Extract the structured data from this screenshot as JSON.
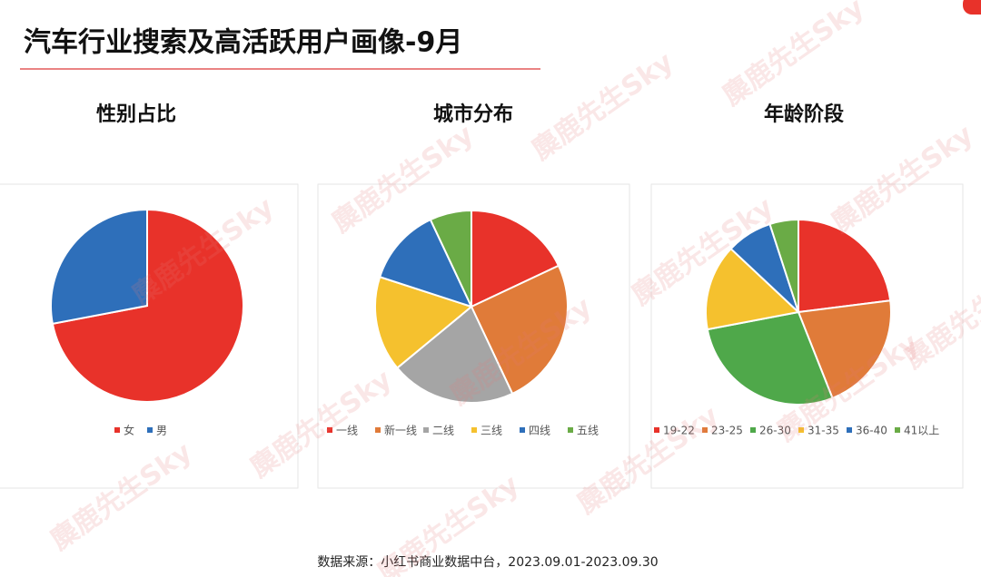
{
  "title": "汽车行业搜索及高活跃用户画像-9月",
  "source": "数据来源：小红书商业数据中台，2023.09.01-2023.09.30",
  "watermark": "麋鹿先生Sky",
  "chart_data": [
    {
      "type": "pie",
      "title": "性别占比",
      "categories": [
        "女",
        "男"
      ],
      "values": [
        72,
        28
      ],
      "colors": [
        "#e8322a",
        "#2e6fba"
      ]
    },
    {
      "type": "pie",
      "title": "城市分布",
      "categories": [
        "一线",
        "新一线",
        "二线",
        "三线",
        "四线",
        "五线"
      ],
      "values": [
        18,
        25,
        21,
        16,
        13,
        7
      ],
      "colors": [
        "#e8322a",
        "#e07b39",
        "#a5a5a5",
        "#f5c12e",
        "#2e6fba",
        "#6aab46"
      ]
    },
    {
      "type": "pie",
      "title": "年龄阶段",
      "categories": [
        "19-22",
        "23-25",
        "26-30",
        "31-35",
        "36-40",
        "41以上"
      ],
      "values": [
        23,
        21,
        28,
        15,
        8,
        5
      ],
      "colors": [
        "#e8322a",
        "#e07b39",
        "#4fa84a",
        "#f5c12e",
        "#2e6fba",
        "#6aab46"
      ]
    }
  ]
}
